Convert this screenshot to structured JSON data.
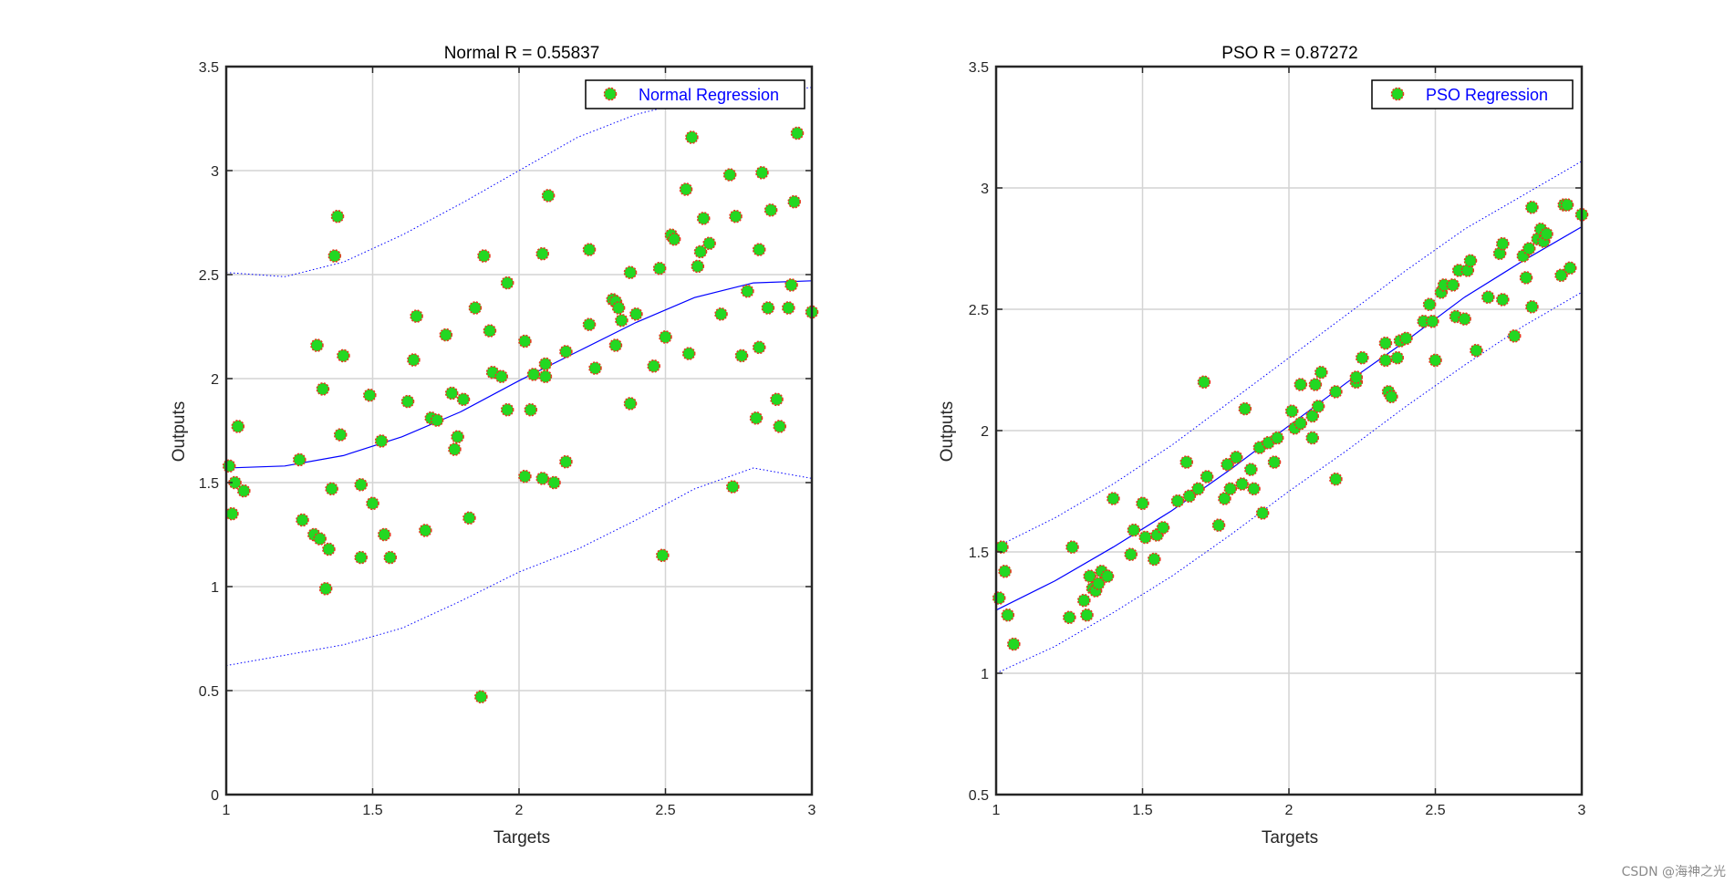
{
  "colors": {
    "marker_fill": "#22d822",
    "marker_edge": "#e5391f",
    "fit_line": "#0000ff",
    "grid": "#d4d4d4",
    "axes": "#262626"
  },
  "watermark": "CSDN @海神之光",
  "chart_data": [
    {
      "type": "scatter",
      "title": "Normal R =  0.55837",
      "xlabel": "Targets",
      "ylabel": "Outputs",
      "xlim": [
        1,
        3
      ],
      "ylim": [
        0,
        3.5
      ],
      "xticks": [
        1,
        1.5,
        2,
        2.5,
        3
      ],
      "yticks": [
        0,
        0.5,
        1,
        1.5,
        2,
        2.5,
        3,
        3.5
      ],
      "grid": true,
      "legend": {
        "label": "Normal Regression",
        "position": "top-right"
      },
      "fit_curve": {
        "x": [
          1,
          1.2,
          1.4,
          1.6,
          1.8,
          2,
          2.2,
          2.4,
          2.6,
          2.8,
          3
        ],
        "y": [
          1.57,
          1.58,
          1.63,
          1.72,
          1.84,
          1.99,
          2.13,
          2.27,
          2.39,
          2.46,
          2.47
        ]
      },
      "upper_bound": {
        "x": [
          1,
          1.2,
          1.4,
          1.6,
          1.8,
          2,
          2.2,
          2.4,
          2.6,
          2.8,
          3
        ],
        "y": [
          2.51,
          2.49,
          2.56,
          2.69,
          2.84,
          3,
          3.16,
          3.27,
          3.34,
          3.37,
          3.4
        ]
      },
      "lower_bound": {
        "x": [
          1,
          1.2,
          1.4,
          1.6,
          1.8,
          2,
          2.2,
          2.4,
          2.6,
          2.8,
          3
        ],
        "y": [
          0.62,
          0.67,
          0.72,
          0.8,
          0.93,
          1.07,
          1.18,
          1.32,
          1.47,
          1.57,
          1.52
        ]
      },
      "points": [
        [
          1.01,
          1.58
        ],
        [
          1.02,
          1.35
        ],
        [
          1.03,
          1.5
        ],
        [
          1.04,
          1.77
        ],
        [
          1.06,
          1.46
        ],
        [
          1.25,
          1.61
        ],
        [
          1.26,
          1.32
        ],
        [
          1.3,
          1.25
        ],
        [
          1.31,
          2.16
        ],
        [
          1.32,
          1.23
        ],
        [
          1.33,
          1.95
        ],
        [
          1.34,
          0.99
        ],
        [
          1.35,
          1.18
        ],
        [
          1.36,
          1.47
        ],
        [
          1.37,
          2.59
        ],
        [
          1.38,
          2.78
        ],
        [
          1.39,
          1.73
        ],
        [
          1.4,
          2.11
        ],
        [
          1.46,
          1.49
        ],
        [
          1.46,
          1.14
        ],
        [
          1.49,
          1.92
        ],
        [
          1.5,
          1.4
        ],
        [
          1.53,
          1.7
        ],
        [
          1.54,
          1.25
        ],
        [
          1.56,
          1.14
        ],
        [
          1.62,
          1.89
        ],
        [
          1.64,
          2.09
        ],
        [
          1.65,
          2.3
        ],
        [
          1.68,
          1.27
        ],
        [
          1.7,
          1.81
        ],
        [
          1.72,
          1.8
        ],
        [
          1.75,
          2.21
        ],
        [
          1.77,
          1.93
        ],
        [
          1.78,
          1.66
        ],
        [
          1.79,
          1.72
        ],
        [
          1.81,
          1.9
        ],
        [
          1.83,
          1.33
        ],
        [
          1.85,
          2.34
        ],
        [
          1.87,
          0.47
        ],
        [
          1.88,
          2.59
        ],
        [
          1.9,
          2.23
        ],
        [
          1.91,
          2.03
        ],
        [
          1.94,
          2.01
        ],
        [
          1.96,
          2.46
        ],
        [
          1.96,
          1.85
        ],
        [
          2.02,
          1.53
        ],
        [
          2.02,
          2.18
        ],
        [
          2.04,
          1.85
        ],
        [
          2.05,
          2.02
        ],
        [
          2.08,
          1.52
        ],
        [
          2.08,
          2.6
        ],
        [
          2.09,
          2.07
        ],
        [
          2.09,
          2.01
        ],
        [
          2.1,
          2.88
        ],
        [
          2.12,
          1.5
        ],
        [
          2.16,
          2.13
        ],
        [
          2.16,
          1.6
        ],
        [
          2.24,
          2.62
        ],
        [
          2.24,
          2.26
        ],
        [
          2.26,
          2.05
        ],
        [
          2.32,
          2.38
        ],
        [
          2.33,
          2.37
        ],
        [
          2.33,
          2.16
        ],
        [
          2.34,
          2.34
        ],
        [
          2.35,
          2.28
        ],
        [
          2.38,
          1.88
        ],
        [
          2.38,
          2.51
        ],
        [
          2.4,
          2.31
        ],
        [
          2.46,
          2.06
        ],
        [
          2.48,
          2.53
        ],
        [
          2.49,
          1.15
        ],
        [
          2.5,
          2.2
        ],
        [
          2.52,
          2.69
        ],
        [
          2.53,
          2.67
        ],
        [
          2.57,
          2.91
        ],
        [
          2.58,
          2.12
        ],
        [
          2.59,
          3.16
        ],
        [
          2.61,
          2.54
        ],
        [
          2.62,
          2.61
        ],
        [
          2.63,
          2.77
        ],
        [
          2.65,
          2.65
        ],
        [
          2.69,
          2.31
        ],
        [
          2.72,
          2.98
        ],
        [
          2.73,
          1.48
        ],
        [
          2.74,
          2.78
        ],
        [
          2.76,
          2.11
        ],
        [
          2.78,
          2.42
        ],
        [
          2.81,
          1.81
        ],
        [
          2.82,
          2.15
        ],
        [
          2.82,
          2.62
        ],
        [
          2.83,
          2.99
        ],
        [
          2.85,
          2.34
        ],
        [
          2.86,
          2.81
        ],
        [
          2.88,
          1.9
        ],
        [
          2.89,
          1.77
        ],
        [
          2.92,
          2.34
        ],
        [
          2.93,
          2.45
        ],
        [
          2.94,
          2.85
        ],
        [
          2.95,
          3.18
        ],
        [
          3,
          2.32
        ]
      ]
    },
    {
      "type": "scatter",
      "title": "PSO R =  0.87272",
      "xlabel": "Targets",
      "ylabel": "Outputs",
      "xlim": [
        1,
        3
      ],
      "ylim": [
        0.5,
        3.5
      ],
      "xticks": [
        1,
        1.5,
        2,
        2.5,
        3
      ],
      "yticks": [
        0.5,
        1,
        1.5,
        2,
        2.5,
        3,
        3.5
      ],
      "grid": true,
      "legend": {
        "label": "PSO Regression",
        "position": "top-right"
      },
      "fit_curve": {
        "x": [
          1,
          1.2,
          1.4,
          1.6,
          1.8,
          2,
          2.2,
          2.4,
          2.6,
          2.8,
          3
        ],
        "y": [
          1.26,
          1.38,
          1.52,
          1.67,
          1.84,
          2.02,
          2.2,
          2.37,
          2.55,
          2.7,
          2.84
        ]
      },
      "upper_bound": {
        "x": [
          1,
          1.2,
          1.4,
          1.6,
          1.8,
          2,
          2.2,
          2.4,
          2.6,
          2.8,
          3
        ],
        "y": [
          1.52,
          1.64,
          1.78,
          1.94,
          2.12,
          2.3,
          2.48,
          2.66,
          2.83,
          2.97,
          3.11
        ]
      },
      "lower_bound": {
        "x": [
          1,
          1.2,
          1.4,
          1.6,
          1.8,
          2,
          2.2,
          2.4,
          2.6,
          2.8,
          3
        ],
        "y": [
          1.0,
          1.11,
          1.25,
          1.4,
          1.57,
          1.75,
          1.92,
          2.1,
          2.27,
          2.43,
          2.57
        ]
      },
      "points": [
        [
          1.01,
          1.31
        ],
        [
          1.02,
          1.52
        ],
        [
          1.03,
          1.42
        ],
        [
          1.04,
          1.24
        ],
        [
          1.06,
          1.12
        ],
        [
          1.25,
          1.23
        ],
        [
          1.26,
          1.52
        ],
        [
          1.3,
          1.3
        ],
        [
          1.31,
          1.24
        ],
        [
          1.32,
          1.4
        ],
        [
          1.33,
          1.35
        ],
        [
          1.34,
          1.34
        ],
        [
          1.35,
          1.37
        ],
        [
          1.36,
          1.42
        ],
        [
          1.38,
          1.4
        ],
        [
          1.4,
          1.72
        ],
        [
          1.46,
          1.49
        ],
        [
          1.47,
          1.59
        ],
        [
          1.5,
          1.7
        ],
        [
          1.51,
          1.56
        ],
        [
          1.54,
          1.47
        ],
        [
          1.55,
          1.57
        ],
        [
          1.57,
          1.6
        ],
        [
          1.62,
          1.71
        ],
        [
          1.65,
          1.87
        ],
        [
          1.66,
          1.73
        ],
        [
          1.69,
          1.76
        ],
        [
          1.71,
          2.2
        ],
        [
          1.72,
          1.81
        ],
        [
          1.76,
          1.61
        ],
        [
          1.78,
          1.72
        ],
        [
          1.79,
          1.86
        ],
        [
          1.8,
          1.76
        ],
        [
          1.82,
          1.89
        ],
        [
          1.84,
          1.78
        ],
        [
          1.85,
          2.09
        ],
        [
          1.87,
          1.84
        ],
        [
          1.88,
          1.76
        ],
        [
          1.9,
          1.93
        ],
        [
          1.91,
          1.66
        ],
        [
          1.93,
          1.95
        ],
        [
          1.95,
          1.87
        ],
        [
          1.96,
          1.97
        ],
        [
          2.01,
          2.08
        ],
        [
          2.02,
          2.01
        ],
        [
          2.04,
          2.19
        ],
        [
          2.04,
          2.03
        ],
        [
          2.08,
          1.97
        ],
        [
          2.08,
          2.06
        ],
        [
          2.09,
          2.19
        ],
        [
          2.1,
          2.1
        ],
        [
          2.11,
          2.24
        ],
        [
          2.16,
          1.8
        ],
        [
          2.16,
          2.16
        ],
        [
          2.23,
          2.2
        ],
        [
          2.23,
          2.22
        ],
        [
          2.25,
          2.3
        ],
        [
          2.33,
          2.36
        ],
        [
          2.33,
          2.29
        ],
        [
          2.34,
          2.16
        ],
        [
          2.35,
          2.14
        ],
        [
          2.37,
          2.3
        ],
        [
          2.38,
          2.37
        ],
        [
          2.4,
          2.38
        ],
        [
          2.46,
          2.45
        ],
        [
          2.48,
          2.52
        ],
        [
          2.49,
          2.45
        ],
        [
          2.5,
          2.29
        ],
        [
          2.52,
          2.57
        ],
        [
          2.53,
          2.6
        ],
        [
          2.56,
          2.6
        ],
        [
          2.57,
          2.47
        ],
        [
          2.58,
          2.66
        ],
        [
          2.6,
          2.46
        ],
        [
          2.61,
          2.66
        ],
        [
          2.62,
          2.7
        ],
        [
          2.64,
          2.33
        ],
        [
          2.68,
          2.55
        ],
        [
          2.72,
          2.73
        ],
        [
          2.73,
          2.54
        ],
        [
          2.73,
          2.77
        ],
        [
          2.77,
          2.39
        ],
        [
          2.8,
          2.72
        ],
        [
          2.81,
          2.63
        ],
        [
          2.82,
          2.75
        ],
        [
          2.83,
          2.51
        ],
        [
          2.83,
          2.92
        ],
        [
          2.85,
          2.79
        ],
        [
          2.86,
          2.83
        ],
        [
          2.87,
          2.78
        ],
        [
          2.88,
          2.81
        ],
        [
          2.93,
          2.64
        ],
        [
          2.94,
          2.93
        ],
        [
          2.95,
          2.93
        ],
        [
          2.96,
          2.67
        ],
        [
          3,
          2.89
        ]
      ]
    }
  ]
}
